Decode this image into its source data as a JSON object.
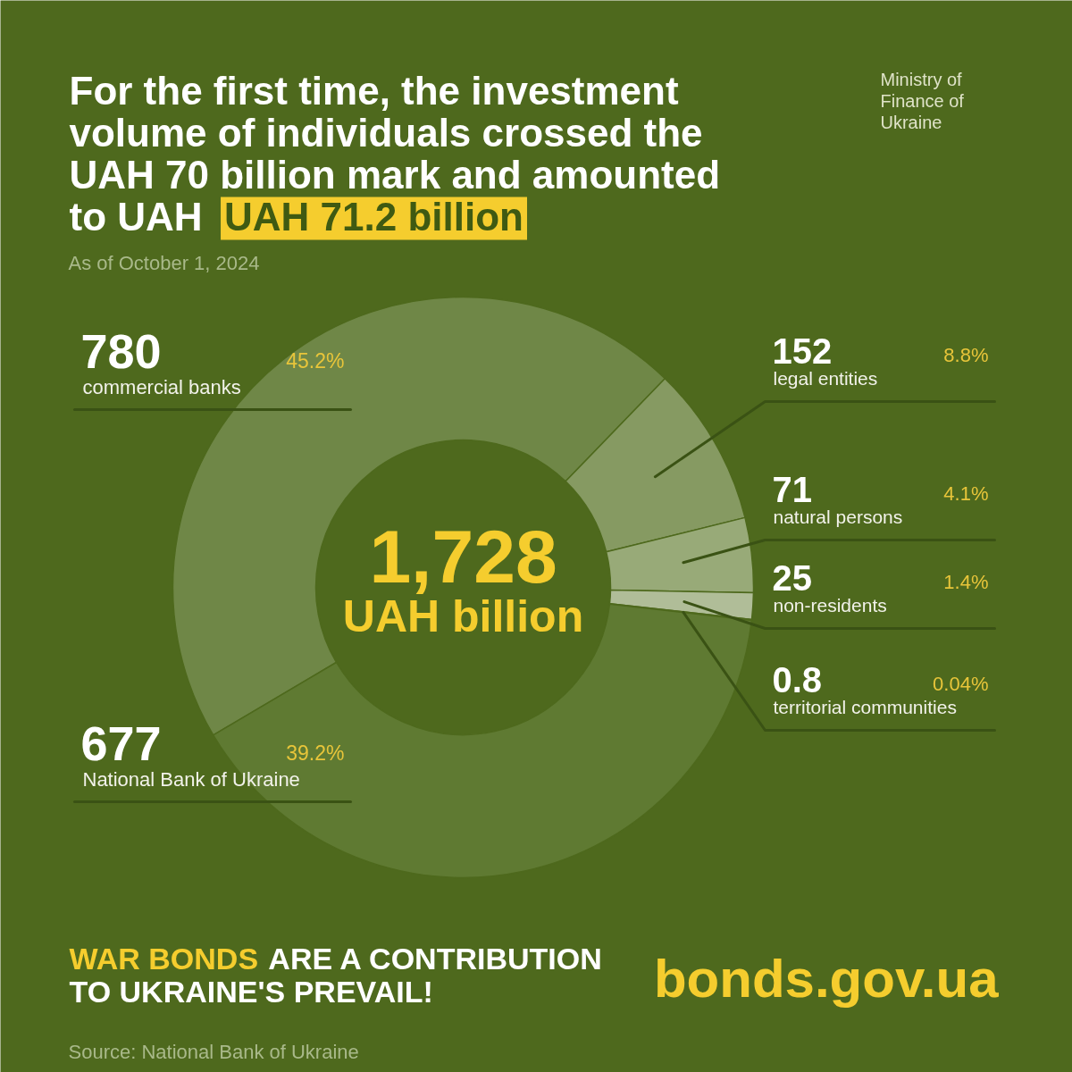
{
  "chart_data": {
    "type": "donut",
    "title": "For the first time, the investment volume of individuals crossed the UAH 70 billion mark and amounted to UAH UAH 71.2 billion",
    "subtitle": "As of October 1, 2024",
    "categories": [
      "commercial banks",
      "legal entities",
      "natural persons",
      "non-residents",
      "territorial communities",
      "National Bank of Ukraine"
    ],
    "values": [
      780,
      152,
      71,
      25,
      0.8,
      677
    ],
    "colors": [
      "#6f8747",
      "#869a62",
      "#98aa78",
      "#b0bd98",
      "#c5ceb0",
      "#5f7a32"
    ],
    "data_labels": true,
    "annotations": [
      "1,728",
      "UAH billion",
      "WAR BONDS ARE A CONTRIBUTION TO UKRAINE'S PREVAIL!",
      "bonds.gov.ua",
      "Source: National Bank of Ukraine",
      "Ministry of Finance of Ukraine",
      {
        "text": "45.2%",
        "x": "commercial banks"
      },
      {
        "text": "8.8%",
        "x": "legal entities"
      },
      {
        "text": "4.1%",
        "x": "natural persons"
      },
      {
        "text": "1.4%",
        "x": "non-residents"
      },
      {
        "text": "0.04%",
        "x": "territorial communities"
      },
      {
        "text": "39.2%",
        "x": "National Bank of Ukraine"
      }
    ]
  }
}
